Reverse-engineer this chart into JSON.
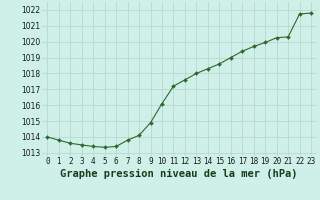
{
  "hours": [
    0,
    1,
    2,
    3,
    4,
    5,
    6,
    7,
    8,
    9,
    10,
    11,
    12,
    13,
    14,
    15,
    16,
    17,
    18,
    19,
    20,
    21,
    22,
    23
  ],
  "pressure": [
    1014.0,
    1013.8,
    1013.6,
    1013.5,
    1013.4,
    1013.35,
    1013.4,
    1013.8,
    1014.1,
    1014.9,
    1016.1,
    1017.2,
    1017.6,
    1018.0,
    1018.3,
    1018.6,
    1019.0,
    1019.4,
    1019.7,
    1019.95,
    1020.25,
    1020.3,
    1021.75,
    1021.8
  ],
  "line_color": "#2d6a2d",
  "marker_color": "#2d6a2d",
  "bg_color": "#cff0e8",
  "grid_color": "#b8d8d0",
  "xlabel_label": "Graphe pression niveau de la mer (hPa)",
  "ylim": [
    1012.8,
    1022.5
  ],
  "xlim": [
    -0.5,
    23.5
  ],
  "yticks": [
    1013,
    1014,
    1015,
    1016,
    1017,
    1018,
    1019,
    1020,
    1021,
    1022
  ],
  "xticks": [
    0,
    1,
    2,
    3,
    4,
    5,
    6,
    7,
    8,
    9,
    10,
    11,
    12,
    13,
    14,
    15,
    16,
    17,
    18,
    19,
    20,
    21,
    22,
    23
  ],
  "tick_fontsize": 5.5,
  "xlabel_fontsize": 7.5,
  "marker_size": 2.0,
  "line_width": 0.8
}
